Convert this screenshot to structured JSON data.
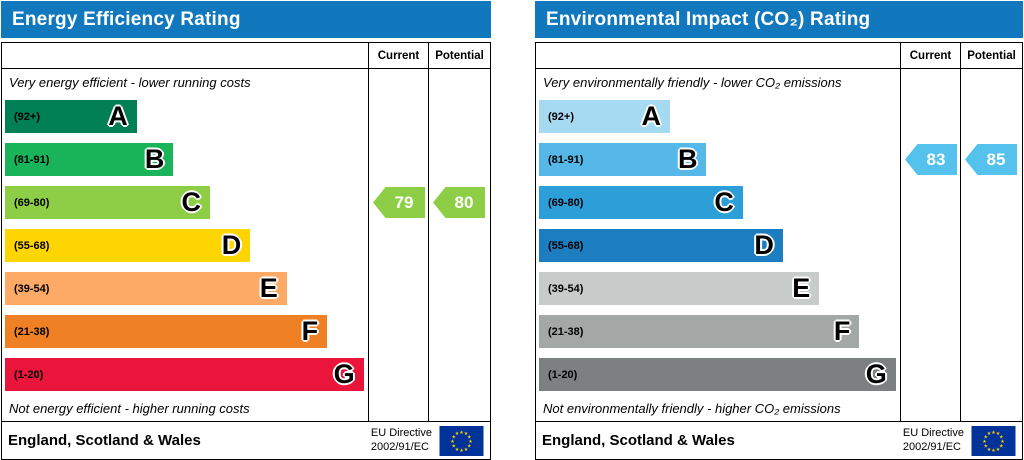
{
  "page": {
    "background": "#ffffff"
  },
  "chart_data": [
    {
      "type": "epc_rating_bar_chart",
      "title": "Energy Efficiency Rating",
      "header_color": "#1278bd",
      "columns": {
        "current": "Current",
        "potential": "Potential"
      },
      "top_note": "Very energy efficient - lower running costs",
      "bottom_note": "Not energy efficient - higher running costs",
      "bands": [
        {
          "letter": "A",
          "range_label": "(92+)",
          "range": [
            92,
            100
          ],
          "color": "#008054",
          "width_pct": 36
        },
        {
          "letter": "B",
          "range_label": "(81-91)",
          "range": [
            81,
            91
          ],
          "color": "#19b459",
          "width_pct": 46
        },
        {
          "letter": "C",
          "range_label": "(69-80)",
          "range": [
            69,
            80
          ],
          "color": "#8dce46",
          "width_pct": 56
        },
        {
          "letter": "D",
          "range_label": "(55-68)",
          "range": [
            55,
            68
          ],
          "color": "#ffd500",
          "width_pct": 67
        },
        {
          "letter": "E",
          "range_label": "(39-54)",
          "range": [
            39,
            54
          ],
          "color": "#fcaa65",
          "width_pct": 77
        },
        {
          "letter": "F",
          "range_label": "(21-38)",
          "range": [
            21,
            38
          ],
          "color": "#ef8023",
          "width_pct": 88
        },
        {
          "letter": "G",
          "range_label": "(1-20)",
          "range": [
            1,
            20
          ],
          "color": "#e9153b",
          "width_pct": 98
        }
      ],
      "current": {
        "value": 79,
        "band": "C",
        "color": "#8dce46"
      },
      "potential": {
        "value": 80,
        "band": "C",
        "color": "#8dce46"
      },
      "footer": {
        "region": "England, Scotland & Wales",
        "directive_line1": "EU Directive",
        "directive_line2": "2002/91/EC"
      },
      "flag_colors": {
        "field": "#003399",
        "stars": "#ffcc00"
      }
    },
    {
      "type": "epc_rating_bar_chart",
      "title": "Environmental Impact (CO₂) Rating",
      "header_color": "#1278bd",
      "columns": {
        "current": "Current",
        "potential": "Potential"
      },
      "top_note": "Very environmentally friendly - lower CO₂ emissions",
      "bottom_note": "Not environmentally friendly - higher CO₂ emissions",
      "bands": [
        {
          "letter": "A",
          "range_label": "(92+)",
          "range": [
            92,
            100
          ],
          "color": "#a6d9f2",
          "width_pct": 36
        },
        {
          "letter": "B",
          "range_label": "(81-91)",
          "range": [
            81,
            91
          ],
          "color": "#55b8e8",
          "width_pct": 46
        },
        {
          "letter": "C",
          "range_label": "(69-80)",
          "range": [
            69,
            80
          ],
          "color": "#2d9fd8",
          "width_pct": 56
        },
        {
          "letter": "D",
          "range_label": "(55-68)",
          "range": [
            55,
            68
          ],
          "color": "#1d7dc1",
          "width_pct": 67
        },
        {
          "letter": "E",
          "range_label": "(39-54)",
          "range": [
            39,
            54
          ],
          "color": "#c7cbca",
          "width_pct": 77
        },
        {
          "letter": "F",
          "range_label": "(21-38)",
          "range": [
            21,
            38
          ],
          "color": "#a3a7a6",
          "width_pct": 88
        },
        {
          "letter": "G",
          "range_label": "(1-20)",
          "range": [
            1,
            20
          ],
          "color": "#7c8080",
          "width_pct": 98
        }
      ],
      "current": {
        "value": 83,
        "band": "B",
        "color": "#55c2ee"
      },
      "potential": {
        "value": 85,
        "band": "B",
        "color": "#55c2ee"
      },
      "footer": {
        "region": "England, Scotland & Wales",
        "directive_line1": "EU Directive",
        "directive_line2": "2002/91/EC"
      },
      "flag_colors": {
        "field": "#003399",
        "stars": "#ffcc00"
      }
    }
  ]
}
